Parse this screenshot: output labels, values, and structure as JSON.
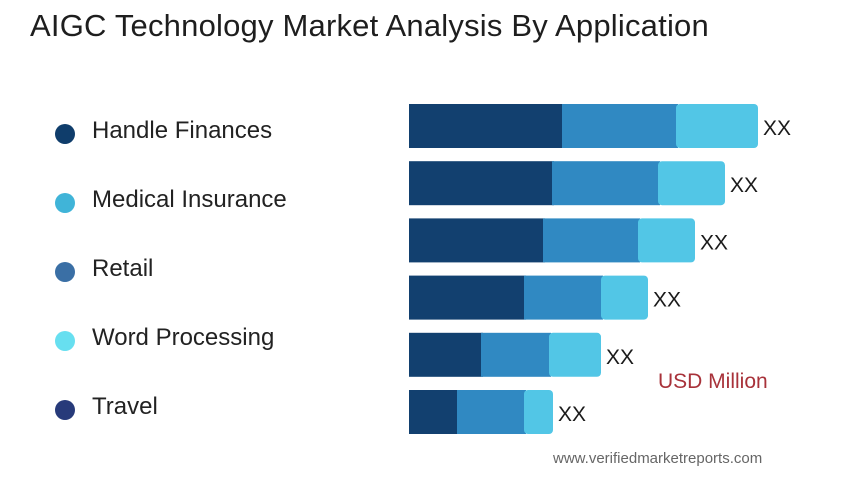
{
  "title": "AIGC Technology Market Analysis By Application",
  "legend": [
    {
      "label": "Handle Finances",
      "color": "#0f3d6b"
    },
    {
      "label": "Medical Insurance",
      "color": "#40b4d8"
    },
    {
      "label": "Retail",
      "color": "#3a6fa5"
    },
    {
      "label": "Word Processing",
      "color": "#67dff0"
    },
    {
      "label": "Travel",
      "color": "#273a7a"
    }
  ],
  "unit_label": "USD Million",
  "source": "www.verifiedmarketreports.com",
  "chart_data": {
    "type": "bar",
    "orientation": "horizontal",
    "stacked": true,
    "categories": [
      "Handle Finances",
      "Medical Insurance",
      "Retail",
      "Word Processing",
      "Travel",
      ""
    ],
    "series": [
      {
        "color": "#12406f",
        "values": [
          153,
          143,
          134,
          115,
          72,
          48
        ]
      },
      {
        "color": "#3089c2",
        "values": [
          114,
          106,
          95,
          77,
          68,
          67
        ]
      },
      {
        "color": "#52c6e6",
        "values": [
          82,
          67,
          57,
          47,
          52,
          29
        ]
      }
    ],
    "value_labels": [
      "XX",
      "XX",
      "XX",
      "XX",
      "XX",
      "XX"
    ],
    "grid": false
  }
}
